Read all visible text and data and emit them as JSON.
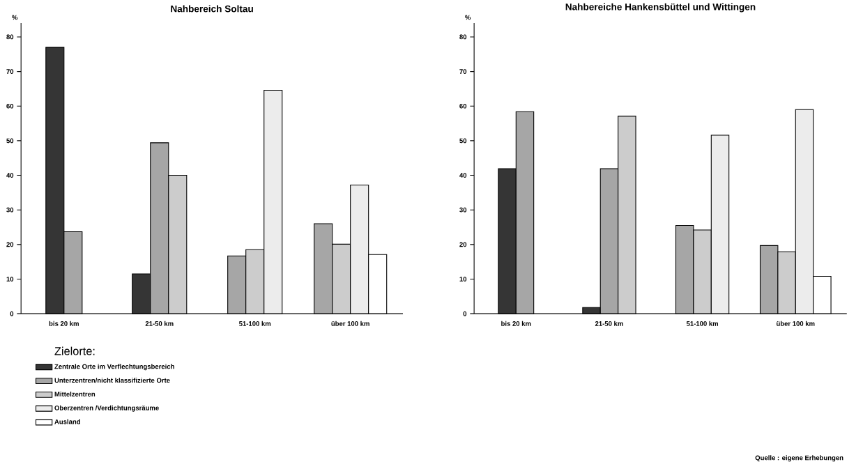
{
  "chart_data": [
    {
      "type": "bar",
      "title": "Nahbereich Soltau",
      "ylabel": "%",
      "legend_title": "Zielorte:",
      "legend": "bottom",
      "categories": [
        "bis 20 km",
        "21-50 km",
        "51-100 km",
        "über 100 km"
      ],
      "ylim": [
        0,
        84
      ],
      "yticks": [
        0,
        10,
        20,
        30,
        40,
        50,
        60,
        70,
        80
      ],
      "series": [
        {
          "name": "Zentrale Orte im Verflechtungsbereich",
          "color": "#353535",
          "values": [
            77,
            11.5,
            null,
            null
          ]
        },
        {
          "name": "Unterzentren/nicht klassifizierte Orte",
          "color": "#a6a6a6",
          "values": [
            23.7,
            49.4,
            16.7,
            26
          ]
        },
        {
          "name": "Mittelzentren",
          "color": "#cccccc",
          "values": [
            null,
            40,
            18.5,
            20.1
          ]
        },
        {
          "name": "Oberzentren /Verdichtungsräume",
          "color": "#ececec",
          "values": [
            null,
            null,
            64.6,
            37.2
          ]
        },
        {
          "name": "Ausland",
          "color": "#ffffff",
          "values": [
            null,
            null,
            null,
            17.1
          ]
        }
      ]
    },
    {
      "type": "bar",
      "title": "Nahbereiche Hankensbüttel und Wittingen",
      "ylabel": "%",
      "annotations": [
        "Quelle : eigene Erhebungen"
      ],
      "categories": [
        "bis 20 km",
        "21-50 km",
        "51-100 km",
        "über 100 km"
      ],
      "ylim": [
        0,
        84
      ],
      "yticks": [
        0,
        10,
        20,
        30,
        40,
        50,
        60,
        70,
        80
      ],
      "series": [
        {
          "color": "#353535",
          "values": [
            41.9,
            1.8,
            null,
            null
          ]
        },
        {
          "color": "#a6a6a6",
          "values": [
            58.4,
            41.9,
            25.5,
            19.7
          ]
        },
        {
          "color": "#cccccc",
          "values": [
            null,
            57.1,
            24.2,
            17.9
          ]
        },
        {
          "color": "#ececec",
          "values": [
            null,
            null,
            51.6,
            59
          ]
        },
        {
          "color": "#ffffff",
          "values": [
            null,
            null,
            null,
            10.8
          ]
        }
      ]
    }
  ]
}
